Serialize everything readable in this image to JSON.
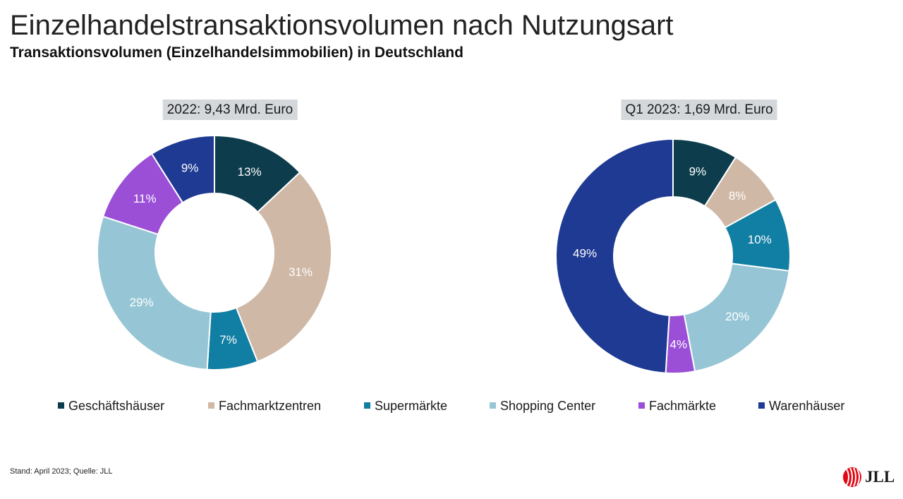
{
  "header": {
    "title": "Einzelhandelstransaktionsvolumen nach Nutzungsart",
    "subtitle": "Transaktionsvolumen (Einzelhandelsimmobilien) in Deutschland"
  },
  "colors": {
    "Geschäftshäuser": "#0d3d4d",
    "Fachmarktzentren": "#cfb8a6",
    "Supermärkte": "#117ea3",
    "Shopping Center": "#96c6d5",
    "Fachmärkte": "#9a4fd6",
    "Warenhäuser": "#1f3a93"
  },
  "chart_data": [
    {
      "type": "pie",
      "title": "2022: 9,43 Mrd. Euro",
      "categories": [
        "Geschäftshäuser",
        "Fachmarktzentren",
        "Supermärkte",
        "Shopping Center",
        "Fachmärkte",
        "Warenhäuser"
      ],
      "values": [
        13,
        31,
        7,
        29,
        11,
        9
      ],
      "labels": [
        "13%",
        "31%",
        "7%",
        "29%",
        "11%",
        "9%"
      ],
      "donut": true
    },
    {
      "type": "pie",
      "title": "Q1 2023: 1,69 Mrd. Euro",
      "categories": [
        "Geschäftshäuser",
        "Fachmarktzentren",
        "Supermärkte",
        "Shopping Center",
        "Fachmärkte",
        "Warenhäuser"
      ],
      "values": [
        9,
        8,
        10,
        20,
        4,
        49
      ],
      "labels": [
        "9%",
        "8%",
        "10%",
        "20%",
        "4%",
        "49%"
      ],
      "donut": true
    }
  ],
  "legend": {
    "items": [
      "Geschäftshäuser",
      "Fachmarktzentren",
      "Supermärkte",
      "Shopping Center",
      "Fachmärkte",
      "Warenhäuser"
    ],
    "placement": "bottom"
  },
  "footer": {
    "source": "Stand: April 2023; Quelle: JLL"
  },
  "logo": {
    "text": "JLL",
    "icon": "jll-logo-icon"
  }
}
